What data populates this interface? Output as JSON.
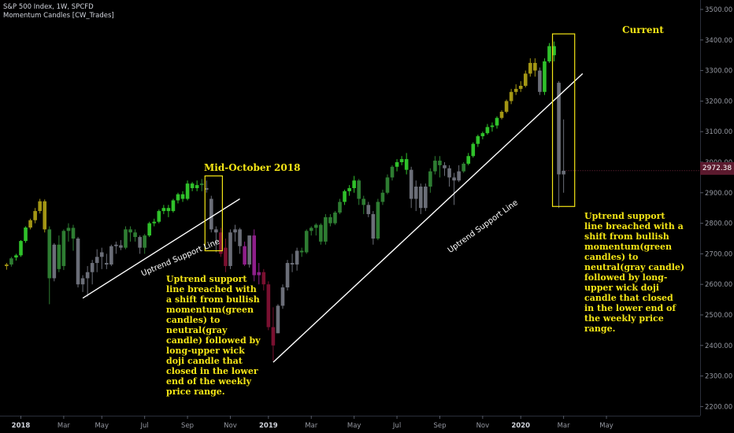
{
  "header": {
    "symbol_line": "S&P 500 Index, 1W, SPCFD",
    "indicator_line": "Momentum Candles [CW_Trades]"
  },
  "current_price_label": "2972.38",
  "annotations": {
    "mid_october_title": "Mid-October 2018",
    "current_title": "Current",
    "left_text": "Uptrend support line breached with a shift from bullish momentum(green candles) to neutral(gray candle) followed by long-upper wick doji candle that closed in the lower end of the weekly price range.",
    "right_text": "Uptrend support line breached with a shift from bullish momentum(green candles) to neutral(gray candle) followed by long-upper wick doji candle that closed in the lower end of the weekly price range."
  },
  "trendlines": {
    "label_1": "Uptrend Support Line",
    "label_2": "Uptrend Support Line"
  },
  "colors": {
    "background": "#000000",
    "green": "#2fc12a",
    "dark_green": "#2e7d32",
    "gray": "#6b6e78",
    "purple": "#8e1f8a",
    "maroon": "#7a1030",
    "olive": "#a39614",
    "yellow": "#f5e616",
    "axis_text": "#9598a1"
  },
  "chart_data": {
    "type": "candlestick",
    "title": "S&P 500 Index, 1W, SPCFD",
    "indicator": "Momentum Candles [CW_Trades]",
    "ylim": [
      2175,
      3560
    ],
    "y_ticks": [
      2200,
      2300,
      2400,
      2500,
      2600,
      2700,
      2800,
      2900,
      3000,
      3100,
      3200,
      3300,
      3400,
      3500
    ],
    "y_tick_labels": [
      "2200.00",
      "2300.00",
      "2400.00",
      "2500.00",
      "2600.00",
      "2700.00",
      "2800.00",
      "2900.00",
      "3000.00",
      "3100.00",
      "3200.00",
      "3300.00",
      "3400.00",
      "3500.00"
    ],
    "x_ticks": [
      {
        "label": "2018",
        "week": 0
      },
      {
        "label": "Mar",
        "week": 9
      },
      {
        "label": "May",
        "week": 17
      },
      {
        "label": "Jul",
        "week": 26
      },
      {
        "label": "Sep",
        "week": 35
      },
      {
        "label": "Nov",
        "week": 44
      },
      {
        "label": "2019",
        "week": 52
      },
      {
        "label": "Mar",
        "week": 61
      },
      {
        "label": "May",
        "week": 70
      },
      {
        "label": "Jul",
        "week": 79
      },
      {
        "label": "Sep",
        "week": 88
      },
      {
        "label": "Nov",
        "week": 97
      },
      {
        "label": "2020",
        "week": 105
      },
      {
        "label": "Mar",
        "week": 114
      },
      {
        "label": "May",
        "week": 123
      }
    ],
    "last_price": 2972.38,
    "candles": [
      {
        "week": -3,
        "o": 2660,
        "h": 2670,
        "l": 2648,
        "c": 2665,
        "color": "olive"
      },
      {
        "week": -2,
        "o": 2665,
        "h": 2690,
        "l": 2658,
        "c": 2685,
        "color": "dark_green"
      },
      {
        "week": -1,
        "o": 2688,
        "h": 2700,
        "l": 2678,
        "c": 2695,
        "color": "green"
      },
      {
        "week": 0,
        "o": 2695,
        "h": 2745,
        "l": 2690,
        "c": 2742,
        "color": "green"
      },
      {
        "week": 1,
        "o": 2742,
        "h": 2790,
        "l": 2736,
        "c": 2786,
        "color": "green"
      },
      {
        "week": 2,
        "o": 2786,
        "h": 2815,
        "l": 2780,
        "c": 2810,
        "color": "olive"
      },
      {
        "week": 3,
        "o": 2810,
        "h": 2850,
        "l": 2800,
        "c": 2840,
        "color": "olive"
      },
      {
        "week": 4,
        "o": 2840,
        "h": 2880,
        "l": 2832,
        "c": 2872,
        "color": "olive"
      },
      {
        "week": 5,
        "o": 2872,
        "h": 2878,
        "l": 2770,
        "c": 2780,
        "color": "olive"
      },
      {
        "week": 6,
        "o": 2780,
        "h": 2790,
        "l": 2535,
        "c": 2620,
        "color": "dark_green"
      },
      {
        "week": 7,
        "o": 2620,
        "h": 2735,
        "l": 2610,
        "c": 2730,
        "color": "gray"
      },
      {
        "week": 8,
        "o": 2730,
        "h": 2760,
        "l": 2640,
        "c": 2650,
        "color": "dark_green"
      },
      {
        "week": 9,
        "o": 2660,
        "h": 2780,
        "l": 2647,
        "c": 2775,
        "color": "dark_green"
      },
      {
        "week": 10,
        "o": 2775,
        "h": 2800,
        "l": 2740,
        "c": 2785,
        "color": "dark_green"
      },
      {
        "week": 11,
        "o": 2785,
        "h": 2795,
        "l": 2710,
        "c": 2750,
        "color": "dark_green"
      },
      {
        "week": 12,
        "o": 2750,
        "h": 2755,
        "l": 2590,
        "c": 2600,
        "color": "gray"
      },
      {
        "week": 13,
        "o": 2600,
        "h": 2630,
        "l": 2575,
        "c": 2620,
        "color": "gray"
      },
      {
        "week": 14,
        "o": 2620,
        "h": 2660,
        "l": 2560,
        "c": 2640,
        "color": "gray"
      },
      {
        "week": 15,
        "o": 2640,
        "h": 2680,
        "l": 2600,
        "c": 2670,
        "color": "gray"
      },
      {
        "week": 16,
        "o": 2670,
        "h": 2715,
        "l": 2640,
        "c": 2690,
        "color": "gray"
      },
      {
        "week": 17,
        "o": 2690,
        "h": 2720,
        "l": 2650,
        "c": 2705,
        "color": "gray"
      },
      {
        "week": 18,
        "o": 2670,
        "h": 2700,
        "l": 2650,
        "c": 2665,
        "color": "gray"
      },
      {
        "week": 19,
        "o": 2665,
        "h": 2730,
        "l": 2660,
        "c": 2725,
        "color": "gray"
      },
      {
        "week": 20,
        "o": 2725,
        "h": 2740,
        "l": 2700,
        "c": 2730,
        "color": "gray"
      },
      {
        "week": 21,
        "o": 2728,
        "h": 2745,
        "l": 2712,
        "c": 2720,
        "color": "gray"
      },
      {
        "week": 22,
        "o": 2720,
        "h": 2790,
        "l": 2715,
        "c": 2780,
        "color": "dark_green"
      },
      {
        "week": 23,
        "o": 2780,
        "h": 2790,
        "l": 2740,
        "c": 2770,
        "color": "dark_green"
      },
      {
        "week": 24,
        "o": 2770,
        "h": 2780,
        "l": 2740,
        "c": 2755,
        "color": "dark_green"
      },
      {
        "week": 25,
        "o": 2755,
        "h": 2760,
        "l": 2700,
        "c": 2720,
        "color": "gray"
      },
      {
        "week": 26,
        "o": 2720,
        "h": 2765,
        "l": 2700,
        "c": 2760,
        "color": "dark_green"
      },
      {
        "week": 27,
        "o": 2760,
        "h": 2805,
        "l": 2755,
        "c": 2800,
        "color": "green"
      },
      {
        "week": 28,
        "o": 2800,
        "h": 2815,
        "l": 2790,
        "c": 2805,
        "color": "green"
      },
      {
        "week": 29,
        "o": 2805,
        "h": 2845,
        "l": 2800,
        "c": 2840,
        "color": "green"
      },
      {
        "week": 30,
        "o": 2840,
        "h": 2860,
        "l": 2830,
        "c": 2850,
        "color": "green"
      },
      {
        "week": 31,
        "o": 2850,
        "h": 2860,
        "l": 2820,
        "c": 2840,
        "color": "green"
      },
      {
        "week": 32,
        "o": 2840,
        "h": 2880,
        "l": 2835,
        "c": 2875,
        "color": "green"
      },
      {
        "week": 33,
        "o": 2875,
        "h": 2900,
        "l": 2865,
        "c": 2895,
        "color": "green"
      },
      {
        "week": 34,
        "o": 2895,
        "h": 2905,
        "l": 2870,
        "c": 2880,
        "color": "green"
      },
      {
        "week": 35,
        "o": 2880,
        "h": 2940,
        "l": 2875,
        "c": 2930,
        "color": "green"
      },
      {
        "week": 36,
        "o": 2930,
        "h": 2935,
        "l": 2905,
        "c": 2915,
        "color": "green"
      },
      {
        "week": 37,
        "o": 2915,
        "h": 2940,
        "l": 2905,
        "c": 2925,
        "color": "green"
      },
      {
        "week": 38,
        "o": 2925,
        "h": 2945,
        "l": 2905,
        "c": 2930,
        "color": "dark_green"
      },
      {
        "week": 39,
        "o": 2915,
        "h": 2940,
        "l": 2900,
        "c": 2910,
        "color": "gray"
      },
      {
        "week": 40,
        "o": 2880,
        "h": 2890,
        "l": 2770,
        "c": 2780,
        "color": "gray"
      },
      {
        "week": 41,
        "o": 2780,
        "h": 2790,
        "l": 2705,
        "c": 2770,
        "color": "gray"
      },
      {
        "week": 42,
        "o": 2770,
        "h": 2785,
        "l": 2690,
        "c": 2700,
        "color": "maroon"
      },
      {
        "week": 43,
        "o": 2720,
        "h": 2750,
        "l": 2640,
        "c": 2660,
        "color": "maroon"
      },
      {
        "week": 44,
        "o": 2660,
        "h": 2780,
        "l": 2650,
        "c": 2770,
        "color": "gray"
      },
      {
        "week": 45,
        "o": 2770,
        "h": 2795,
        "l": 2740,
        "c": 2780,
        "color": "gray"
      },
      {
        "week": 46,
        "o": 2780,
        "h": 2785,
        "l": 2700,
        "c": 2725,
        "color": "gray"
      },
      {
        "week": 47,
        "o": 2725,
        "h": 2740,
        "l": 2660,
        "c": 2665,
        "color": "purple"
      },
      {
        "week": 48,
        "o": 2665,
        "h": 2760,
        "l": 2655,
        "c": 2760,
        "color": "gray"
      },
      {
        "week": 49,
        "o": 2760,
        "h": 2780,
        "l": 2610,
        "c": 2630,
        "color": "purple"
      },
      {
        "week": 50,
        "o": 2630,
        "h": 2670,
        "l": 2600,
        "c": 2640,
        "color": "purple"
      },
      {
        "week": 51,
        "o": 2640,
        "h": 2650,
        "l": 2580,
        "c": 2600,
        "color": "maroon"
      },
      {
        "week": 52,
        "o": 2600,
        "h": 2610,
        "l": 2450,
        "c": 2460,
        "color": "maroon"
      },
      {
        "week": 53,
        "o": 2460,
        "h": 2525,
        "l": 2350,
        "c": 2400,
        "color": "maroon"
      },
      {
        "week": 54,
        "o": 2440,
        "h": 2535,
        "l": 2440,
        "c": 2530,
        "color": "gray"
      },
      {
        "week": 55,
        "o": 2530,
        "h": 2600,
        "l": 2520,
        "c": 2590,
        "color": "gray"
      },
      {
        "week": 56,
        "o": 2590,
        "h": 2680,
        "l": 2580,
        "c": 2670,
        "color": "gray"
      },
      {
        "week": 57,
        "o": 2670,
        "h": 2700,
        "l": 2640,
        "c": 2665,
        "color": "gray"
      },
      {
        "week": 58,
        "o": 2665,
        "h": 2720,
        "l": 2645,
        "c": 2710,
        "color": "gray"
      },
      {
        "week": 59,
        "o": 2710,
        "h": 2720,
        "l": 2690,
        "c": 2705,
        "color": "dark_green"
      },
      {
        "week": 60,
        "o": 2705,
        "h": 2780,
        "l": 2700,
        "c": 2775,
        "color": "dark_green"
      },
      {
        "week": 61,
        "o": 2775,
        "h": 2790,
        "l": 2760,
        "c": 2785,
        "color": "dark_green"
      },
      {
        "week": 62,
        "o": 2785,
        "h": 2800,
        "l": 2760,
        "c": 2795,
        "color": "dark_green"
      },
      {
        "week": 63,
        "o": 2795,
        "h": 2800,
        "l": 2730,
        "c": 2740,
        "color": "dark_green"
      },
      {
        "week": 64,
        "o": 2740,
        "h": 2830,
        "l": 2730,
        "c": 2820,
        "color": "dark_green"
      },
      {
        "week": 65,
        "o": 2820,
        "h": 2830,
        "l": 2790,
        "c": 2800,
        "color": "dark_green"
      },
      {
        "week": 66,
        "o": 2800,
        "h": 2840,
        "l": 2795,
        "c": 2835,
        "color": "dark_green"
      },
      {
        "week": 67,
        "o": 2835,
        "h": 2880,
        "l": 2830,
        "c": 2870,
        "color": "dark_green"
      },
      {
        "week": 68,
        "o": 2870,
        "h": 2910,
        "l": 2860,
        "c": 2905,
        "color": "green"
      },
      {
        "week": 69,
        "o": 2905,
        "h": 2925,
        "l": 2890,
        "c": 2915,
        "color": "green"
      },
      {
        "week": 70,
        "o": 2915,
        "h": 2955,
        "l": 2900,
        "c": 2940,
        "color": "green"
      },
      {
        "week": 71,
        "o": 2940,
        "h": 2945,
        "l": 2860,
        "c": 2880,
        "color": "dark_green"
      },
      {
        "week": 72,
        "o": 2880,
        "h": 2890,
        "l": 2830,
        "c": 2860,
        "color": "dark_green"
      },
      {
        "week": 73,
        "o": 2860,
        "h": 2870,
        "l": 2820,
        "c": 2830,
        "color": "gray"
      },
      {
        "week": 74,
        "o": 2830,
        "h": 2840,
        "l": 2730,
        "c": 2750,
        "color": "gray"
      },
      {
        "week": 75,
        "o": 2750,
        "h": 2880,
        "l": 2745,
        "c": 2870,
        "color": "dark_green"
      },
      {
        "week": 76,
        "o": 2870,
        "h": 2910,
        "l": 2860,
        "c": 2900,
        "color": "dark_green"
      },
      {
        "week": 77,
        "o": 2900,
        "h": 2960,
        "l": 2895,
        "c": 2950,
        "color": "dark_green"
      },
      {
        "week": 78,
        "o": 2950,
        "h": 2990,
        "l": 2940,
        "c": 2985,
        "color": "dark_green"
      },
      {
        "week": 79,
        "o": 2985,
        "h": 3010,
        "l": 2970,
        "c": 3000,
        "color": "green"
      },
      {
        "week": 80,
        "o": 3000,
        "h": 3020,
        "l": 2990,
        "c": 3010,
        "color": "green"
      },
      {
        "week": 81,
        "o": 3010,
        "h": 3030,
        "l": 2960,
        "c": 2975,
        "color": "green"
      },
      {
        "week": 82,
        "o": 2975,
        "h": 2985,
        "l": 2850,
        "c": 2880,
        "color": "gray"
      },
      {
        "week": 83,
        "o": 2880,
        "h": 2940,
        "l": 2840,
        "c": 2920,
        "color": "gray"
      },
      {
        "week": 84,
        "o": 2920,
        "h": 2930,
        "l": 2830,
        "c": 2850,
        "color": "gray"
      },
      {
        "week": 85,
        "o": 2850,
        "h": 2930,
        "l": 2840,
        "c": 2920,
        "color": "gray"
      },
      {
        "week": 86,
        "o": 2920,
        "h": 2980,
        "l": 2900,
        "c": 2970,
        "color": "dark_green"
      },
      {
        "week": 87,
        "o": 2970,
        "h": 3020,
        "l": 2960,
        "c": 3005,
        "color": "dark_green"
      },
      {
        "week": 88,
        "o": 3005,
        "h": 3020,
        "l": 2950,
        "c": 2990,
        "color": "dark_green"
      },
      {
        "week": 89,
        "o": 2990,
        "h": 3000,
        "l": 2955,
        "c": 2980,
        "color": "gray"
      },
      {
        "week": 90,
        "o": 2980,
        "h": 2990,
        "l": 2920,
        "c": 2950,
        "color": "gray"
      },
      {
        "week": 91,
        "o": 2950,
        "h": 2965,
        "l": 2860,
        "c": 2940,
        "color": "gray"
      },
      {
        "week": 92,
        "o": 2940,
        "h": 2990,
        "l": 2935,
        "c": 2970,
        "color": "gray"
      },
      {
        "week": 93,
        "o": 2970,
        "h": 3000,
        "l": 2965,
        "c": 2995,
        "color": "dark_green"
      },
      {
        "week": 94,
        "o": 2995,
        "h": 3030,
        "l": 2990,
        "c": 3020,
        "color": "green"
      },
      {
        "week": 95,
        "o": 3020,
        "h": 3065,
        "l": 3015,
        "c": 3060,
        "color": "green"
      },
      {
        "week": 96,
        "o": 3060,
        "h": 3090,
        "l": 3050,
        "c": 3085,
        "color": "green"
      },
      {
        "week": 97,
        "o": 3085,
        "h": 3100,
        "l": 3075,
        "c": 3095,
        "color": "green"
      },
      {
        "week": 98,
        "o": 3095,
        "h": 3125,
        "l": 3090,
        "c": 3115,
        "color": "green"
      },
      {
        "week": 99,
        "o": 3115,
        "h": 3130,
        "l": 3100,
        "c": 3120,
        "color": "green"
      },
      {
        "week": 100,
        "o": 3120,
        "h": 3150,
        "l": 3110,
        "c": 3145,
        "color": "green"
      },
      {
        "week": 101,
        "o": 3145,
        "h": 3170,
        "l": 3140,
        "c": 3165,
        "color": "olive"
      },
      {
        "week": 102,
        "o": 3165,
        "h": 3205,
        "l": 3160,
        "c": 3200,
        "color": "olive"
      },
      {
        "week": 103,
        "o": 3200,
        "h": 3240,
        "l": 3190,
        "c": 3230,
        "color": "olive"
      },
      {
        "week": 104,
        "o": 3230,
        "h": 3255,
        "l": 3220,
        "c": 3240,
        "color": "olive"
      },
      {
        "week": 105,
        "o": 3240,
        "h": 3265,
        "l": 3230,
        "c": 3250,
        "color": "olive"
      },
      {
        "week": 106,
        "o": 3250,
        "h": 3300,
        "l": 3245,
        "c": 3290,
        "color": "olive"
      },
      {
        "week": 107,
        "o": 3290,
        "h": 3340,
        "l": 3280,
        "c": 3325,
        "color": "olive"
      },
      {
        "week": 108,
        "o": 3325,
        "h": 3340,
        "l": 3280,
        "c": 3300,
        "color": "olive"
      },
      {
        "week": 109,
        "o": 3300,
        "h": 3310,
        "l": 3220,
        "c": 3230,
        "color": "gray"
      },
      {
        "week": 110,
        "o": 3230,
        "h": 3340,
        "l": 3220,
        "c": 3330,
        "color": "green"
      },
      {
        "week": 111,
        "o": 3330,
        "h": 3390,
        "l": 3325,
        "c": 3380,
        "color": "green"
      },
      {
        "week": 112,
        "o": 3380,
        "h": 3395,
        "l": 3330,
        "c": 3350,
        "color": "green"
      },
      {
        "week": 113,
        "o": 3260,
        "h": 3265,
        "l": 2850,
        "c": 2960,
        "color": "gray"
      },
      {
        "week": 114,
        "o": 2960,
        "h": 3140,
        "l": 2900,
        "c": 2972,
        "color": "gray"
      }
    ],
    "trendlines": [
      {
        "label": "Uptrend Support Line",
        "from": {
          "week": 13,
          "price": 2555
        },
        "to": {
          "week": 46,
          "price": 2880
        }
      },
      {
        "label": "Uptrend Support Line",
        "from": {
          "week": 53,
          "price": 2345
        },
        "to": {
          "week": 118,
          "price": 3290
        }
      }
    ],
    "highlight_boxes": [
      {
        "label": "Mid-October 2018",
        "from_week": 39,
        "to_week": 42,
        "price_top": 2955,
        "price_bottom": 2710
      },
      {
        "label": "Current",
        "from_week": 112,
        "to_week": 116,
        "price_top": 3420,
        "price_bottom": 2855
      }
    ]
  }
}
